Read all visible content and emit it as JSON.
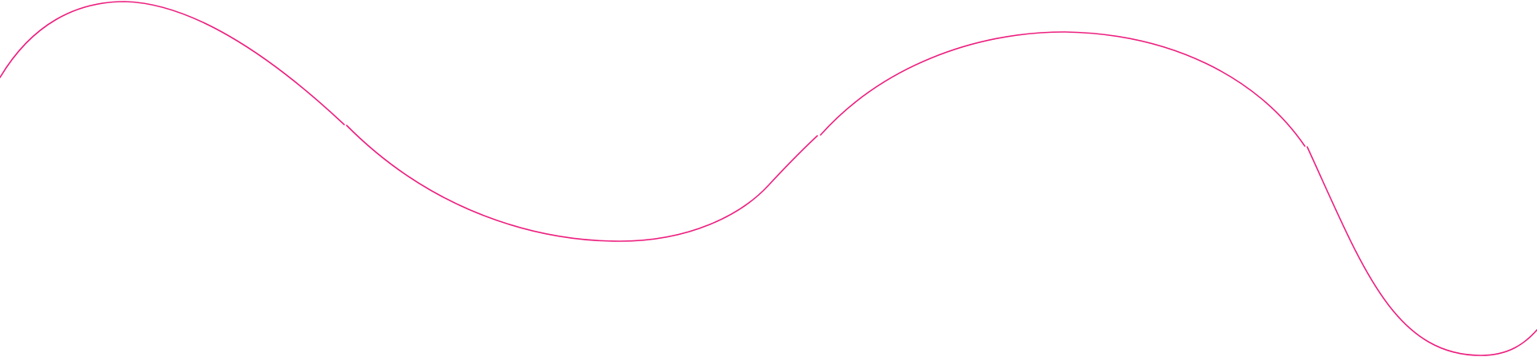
{
  "decoration": {
    "type": "wavy-line",
    "stroke_color": "#ec1e7e",
    "background_color": "#ffffff"
  }
}
